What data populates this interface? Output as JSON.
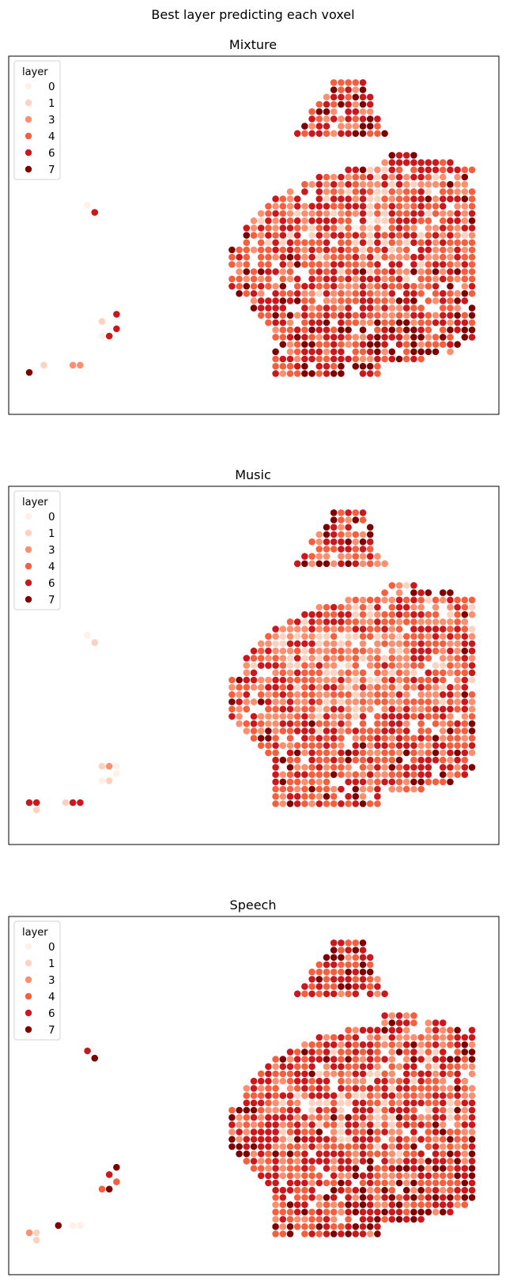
{
  "figure": {
    "suptitle": "Best layer predicting each voxel",
    "legend_title": "layer",
    "legend_position": "upper-left"
  },
  "palette": {
    "0": "#fff0e9",
    "1": "#fcd3c1",
    "3": "#fc8f6f",
    "4": "#f4603f",
    "6": "#cb181d",
    "7": "#7f0000"
  },
  "chart_data": [
    {
      "type": "scatter",
      "title": "Mixture",
      "hue": "layer",
      "legend": [
        "0",
        "1",
        "3",
        "4",
        "6",
        "7"
      ],
      "axes_visible": false,
      "layer_mix": {
        "0": 0.06,
        "1": 0.11,
        "3": 0.2,
        "4": 0.22,
        "6": 0.25,
        "7": 0.16
      },
      "strays": [
        {
          "x": 4,
          "y": 3,
          "layer": 7
        },
        {
          "x": 6,
          "y": 4,
          "layer": 1
        },
        {
          "x": 10,
          "y": 4,
          "layer": 3
        },
        {
          "x": 11,
          "y": 4,
          "layer": 3
        },
        {
          "x": 14,
          "y": 8,
          "layer": 0
        },
        {
          "x": 15,
          "y": 8,
          "layer": 6
        },
        {
          "x": 16,
          "y": 9,
          "layer": 6
        },
        {
          "x": 14,
          "y": 10,
          "layer": 1
        },
        {
          "x": 16,
          "y": 11,
          "layer": 6
        },
        {
          "x": 12,
          "y": 26,
          "layer": 0
        },
        {
          "x": 13,
          "y": 25,
          "layer": 6
        }
      ]
    },
    {
      "type": "scatter",
      "title": "Music",
      "hue": "layer",
      "legend": [
        "0",
        "1",
        "3",
        "4",
        "6",
        "7"
      ],
      "axes_visible": false,
      "layer_mix": {
        "0": 0.08,
        "1": 0.14,
        "3": 0.22,
        "4": 0.24,
        "6": 0.2,
        "7": 0.12
      },
      "strays": [
        {
          "x": 4,
          "y": 3,
          "layer": 6
        },
        {
          "x": 5,
          "y": 3,
          "layer": 6
        },
        {
          "x": 5,
          "y": 2,
          "layer": 1
        },
        {
          "x": 9,
          "y": 3,
          "layer": 1
        },
        {
          "x": 10,
          "y": 3,
          "layer": 6
        },
        {
          "x": 11,
          "y": 3,
          "layer": 6
        },
        {
          "x": 14,
          "y": 6,
          "layer": 0
        },
        {
          "x": 15,
          "y": 6,
          "layer": 1
        },
        {
          "x": 16,
          "y": 7,
          "layer": 0
        },
        {
          "x": 14,
          "y": 8,
          "layer": 1
        },
        {
          "x": 15,
          "y": 8,
          "layer": 3
        },
        {
          "x": 16,
          "y": 8,
          "layer": 0
        },
        {
          "x": 12,
          "y": 26,
          "layer": 0
        },
        {
          "x": 13,
          "y": 25,
          "layer": 1
        }
      ]
    },
    {
      "type": "scatter",
      "title": "Speech",
      "hue": "layer",
      "legend": [
        "0",
        "1",
        "3",
        "4",
        "6",
        "7"
      ],
      "axes_visible": false,
      "layer_mix": {
        "0": 0.05,
        "1": 0.12,
        "3": 0.18,
        "4": 0.2,
        "6": 0.25,
        "7": 0.2
      },
      "strays": [
        {
          "x": 4,
          "y": 3,
          "layer": 3
        },
        {
          "x": 5,
          "y": 3,
          "layer": 1
        },
        {
          "x": 5,
          "y": 2,
          "layer": 1
        },
        {
          "x": 8,
          "y": 4,
          "layer": 7
        },
        {
          "x": 10,
          "y": 4,
          "layer": 0
        },
        {
          "x": 11,
          "y": 4,
          "layer": 0
        },
        {
          "x": 14,
          "y": 9,
          "layer": 4
        },
        {
          "x": 15,
          "y": 9,
          "layer": 7
        },
        {
          "x": 16,
          "y": 10,
          "layer": 4
        },
        {
          "x": 15,
          "y": 11,
          "layer": 6
        },
        {
          "x": 16,
          "y": 12,
          "layer": 7
        },
        {
          "x": 12,
          "y": 28,
          "layer": 6
        },
        {
          "x": 13,
          "y": 27,
          "layer": 7
        }
      ]
    }
  ]
}
